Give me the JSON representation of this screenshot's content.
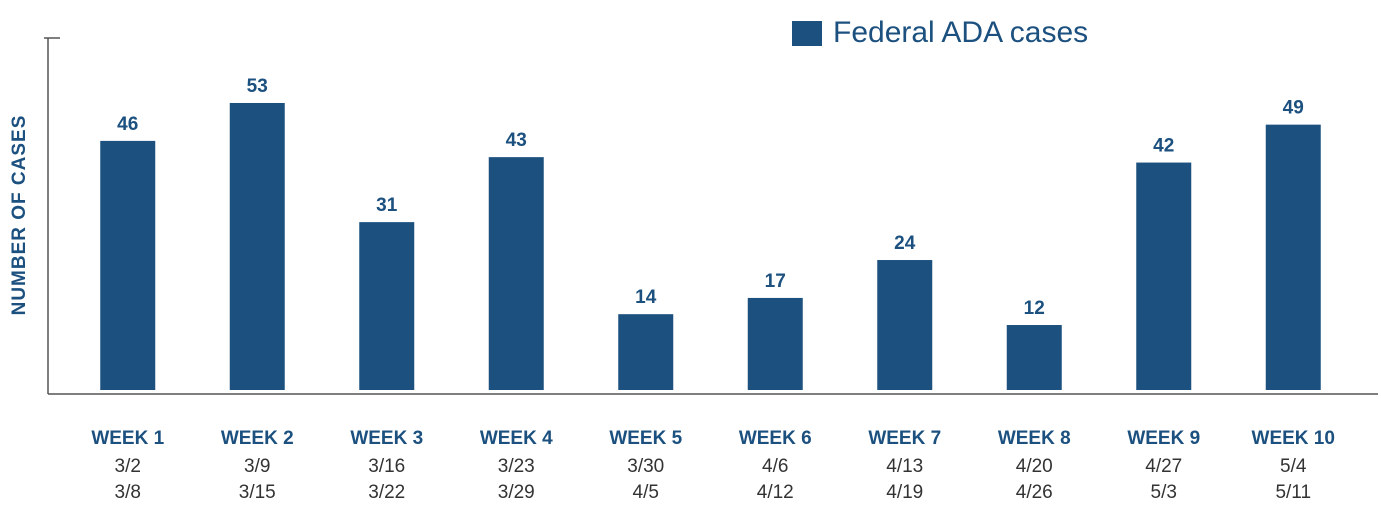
{
  "chart_data": {
    "type": "bar",
    "y_label": "NUMBER OF CASES",
    "categories": [
      "WEEK 1",
      "WEEK 2",
      "WEEK 3",
      "WEEK 4",
      "WEEK 5",
      "WEEK 6",
      "WEEK 7",
      "WEEK 8",
      "WEEK 9",
      "WEEK 10"
    ],
    "category_dates": [
      [
        "3/2",
        "3/8"
      ],
      [
        "3/9",
        "3/15"
      ],
      [
        "3/16",
        "3/22"
      ],
      [
        "3/23",
        "3/29"
      ],
      [
        "3/30",
        "4/5"
      ],
      [
        "4/6",
        "4/12"
      ],
      [
        "4/13",
        "4/19"
      ],
      [
        "4/20",
        "4/26"
      ],
      [
        "4/27",
        "5/3"
      ],
      [
        "5/4",
        "5/11"
      ]
    ],
    "series": [
      {
        "name": "Federal ADA cases",
        "color": "#1b507f",
        "values": [
          46,
          53,
          31,
          43,
          14,
          17,
          24,
          12,
          42,
          49
        ]
      }
    ],
    "ylim": [
      0,
      65
    ],
    "legend": "top-right"
  }
}
